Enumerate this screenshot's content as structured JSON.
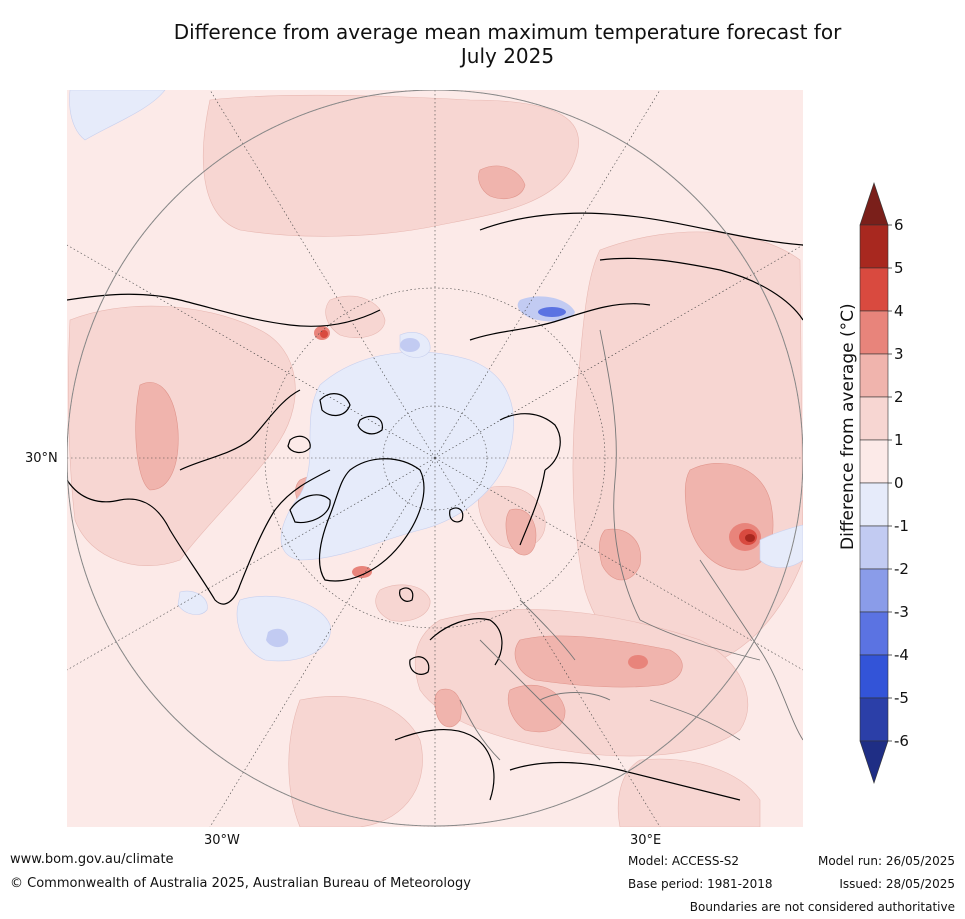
{
  "title_line1": "Difference from average mean maximum temperature forecast for",
  "title_line2": "July 2025",
  "lat_labels": {
    "lat30": "30°N"
  },
  "lon_labels": {
    "w30": "30°W",
    "e30": "30°E"
  },
  "colorbar": {
    "label": "Difference from average (°C)",
    "ticks": [
      "6",
      "5",
      "4",
      "3",
      "2",
      "1",
      "0",
      "-1",
      "-2",
      "-3",
      "-4",
      "-5",
      "-6"
    ],
    "colors_top_to_bottom": [
      "#7a1f1a",
      "#a8281f",
      "#d94a3f",
      "#e8847b",
      "#f0b4ad",
      "#f7d6d2",
      "#fceae8",
      "#e6ebfa",
      "#c2cbf2",
      "#8a9ce9",
      "#5b73e2",
      "#3354d8",
      "#2b3fa8",
      "#1f2e85"
    ]
  },
  "footer": {
    "website": "www.bom.gov.au/climate",
    "copyright": "© Commonwealth of Australia 2025, Australian Bureau of Meteorology",
    "model": "Model: ACCESS-S2",
    "base_period": "Base period: 1981-2018",
    "model_run": "Model run: 26/05/2025",
    "issued": "Issued: 28/05/2025",
    "boundaries": "Boundaries are not considered authoritative"
  }
}
